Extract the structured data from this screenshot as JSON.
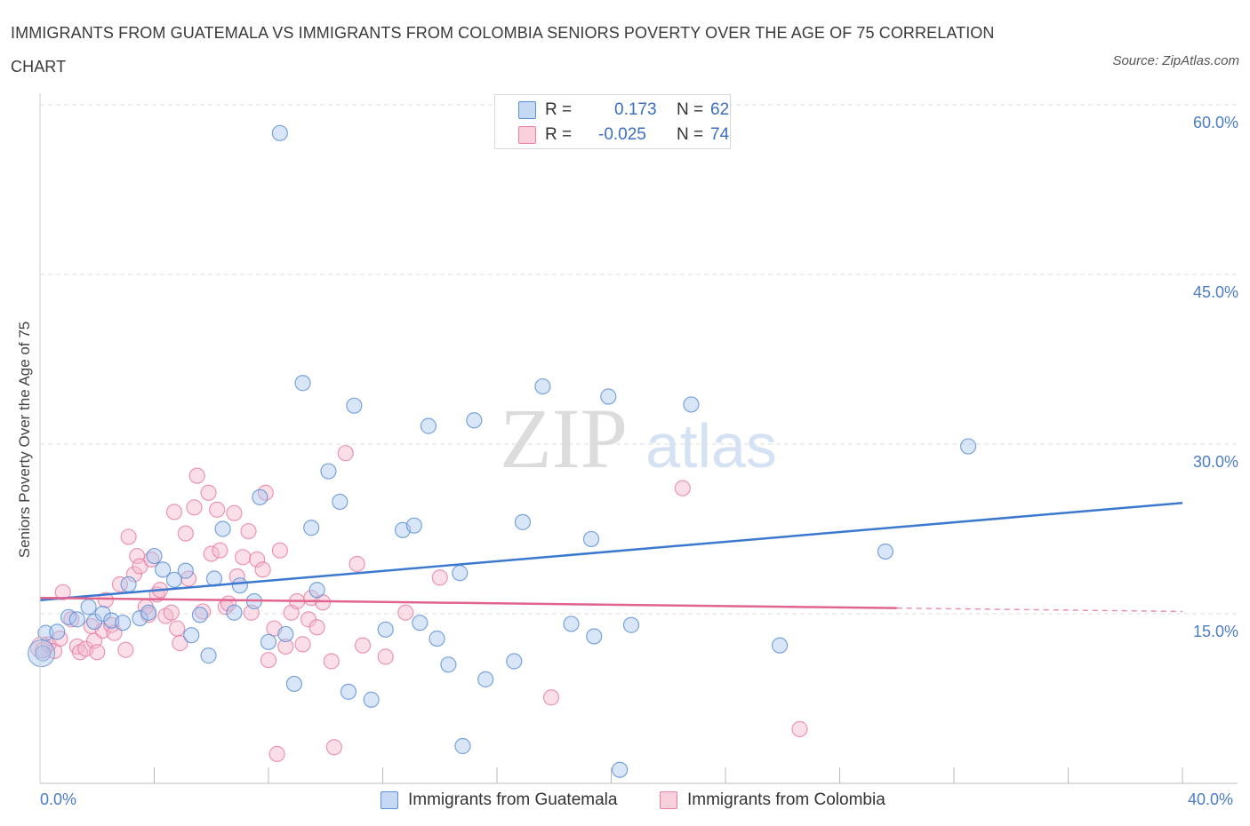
{
  "title": "IMMIGRANTS FROM GUATEMALA VS IMMIGRANTS FROM COLOMBIA SENIORS POVERTY OVER THE AGE OF 75 CORRELATION CHART",
  "source": "Source: ZipAtlas.com",
  "watermark": {
    "zip": "ZIP",
    "atlas": "atlas"
  },
  "legend": {
    "guatemala": {
      "r_label": "R =",
      "r_value": "0.173",
      "n_label": "N =",
      "n_value": "62"
    },
    "colombia": {
      "r_label": "R =",
      "r_value": "-0.025",
      "n_label": "N =",
      "n_value": "74"
    }
  },
  "bottom_legend": {
    "guatemala": "Immigrants from Guatemala",
    "colombia": "Immigrants from Colombia"
  },
  "colors": {
    "guatemala": "#5b8fd6",
    "guatemala_fill": "#aac8f0",
    "colombia": "#e87ea0",
    "colombia_fill": "#f5b8cb",
    "tick": "#4a7cc7"
  },
  "chart_data": {
    "type": "scatter",
    "title": "IMMIGRANTS FROM GUATEMALA VS IMMIGRANTS FROM COLOMBIA SENIORS POVERTY OVER THE AGE OF 75 CORRELATION CHART",
    "xlabel": "",
    "ylabel": "Seniors Poverty Over the Age of 75",
    "xlim": [
      0,
      40
    ],
    "ylim": [
      0,
      60
    ],
    "x_tick_labels": [
      "0.0%",
      "40.0%"
    ],
    "y_ticks": [
      15,
      30,
      45,
      60
    ],
    "y_tick_labels": [
      "15.0%",
      "30.0%",
      "45.0%",
      "60.0%"
    ],
    "grid": true,
    "legend_position": "top-center",
    "series": [
      {
        "name": "Immigrants from Guatemala",
        "r": 0.173,
        "n": 62,
        "trend": {
          "x": [
            0,
            40
          ],
          "y": [
            16.2,
            24.8
          ]
        },
        "points": [
          [
            0.1,
            11.5
          ],
          [
            0.2,
            13.3
          ],
          [
            0.6,
            13.4
          ],
          [
            1.0,
            14.7
          ],
          [
            1.3,
            14.5
          ],
          [
            1.7,
            15.6
          ],
          [
            1.9,
            14.3
          ],
          [
            2.2,
            15.0
          ],
          [
            2.5,
            14.4
          ],
          [
            2.9,
            14.2
          ],
          [
            3.1,
            17.6
          ],
          [
            3.5,
            14.6
          ],
          [
            3.8,
            15.1
          ],
          [
            4.0,
            20.1
          ],
          [
            4.3,
            18.9
          ],
          [
            4.7,
            18.0
          ],
          [
            5.1,
            18.8
          ],
          [
            5.3,
            13.1
          ],
          [
            5.6,
            14.9
          ],
          [
            5.9,
            11.3
          ],
          [
            6.1,
            18.1
          ],
          [
            6.4,
            22.5
          ],
          [
            6.8,
            15.1
          ],
          [
            7.0,
            17.5
          ],
          [
            7.5,
            16.1
          ],
          [
            7.7,
            25.3
          ],
          [
            8.0,
            12.5
          ],
          [
            8.4,
            57.5
          ],
          [
            8.6,
            13.2
          ],
          [
            8.9,
            8.8
          ],
          [
            9.2,
            35.4
          ],
          [
            9.5,
            22.6
          ],
          [
            9.7,
            17.1
          ],
          [
            10.1,
            27.6
          ],
          [
            10.5,
            24.9
          ],
          [
            10.8,
            8.1
          ],
          [
            11.0,
            33.4
          ],
          [
            11.6,
            7.4
          ],
          [
            12.1,
            13.6
          ],
          [
            12.7,
            22.4
          ],
          [
            13.1,
            22.8
          ],
          [
            13.3,
            14.2
          ],
          [
            13.6,
            31.6
          ],
          [
            13.9,
            12.8
          ],
          [
            14.3,
            10.5
          ],
          [
            14.8,
            3.3
          ],
          [
            14.7,
            18.6
          ],
          [
            15.2,
            32.1
          ],
          [
            15.6,
            9.2
          ],
          [
            16.6,
            10.8
          ],
          [
            16.9,
            23.1
          ],
          [
            17.6,
            35.1
          ],
          [
            18.6,
            14.1
          ],
          [
            19.3,
            21.6
          ],
          [
            19.4,
            13.0
          ],
          [
            19.9,
            34.2
          ],
          [
            20.3,
            1.2
          ],
          [
            20.7,
            14.0
          ],
          [
            22.8,
            33.5
          ],
          [
            25.9,
            12.2
          ],
          [
            29.6,
            20.5
          ],
          [
            32.5,
            29.8
          ]
        ]
      },
      {
        "name": "Immigrants from Colombia",
        "r": -0.025,
        "n": 74,
        "trend": {
          "x": [
            0,
            30,
            40
          ],
          "y": [
            16.4,
            15.5,
            15.2
          ]
        },
        "points": [
          [
            0.1,
            11.8
          ],
          [
            0.3,
            12.3
          ],
          [
            0.5,
            11.7
          ],
          [
            0.7,
            12.8
          ],
          [
            0.8,
            16.9
          ],
          [
            1.1,
            14.5
          ],
          [
            1.3,
            12.1
          ],
          [
            1.4,
            11.6
          ],
          [
            1.6,
            11.9
          ],
          [
            1.8,
            13.9
          ],
          [
            1.9,
            12.6
          ],
          [
            2.0,
            11.6
          ],
          [
            2.2,
            13.5
          ],
          [
            2.3,
            16.2
          ],
          [
            2.5,
            14.0
          ],
          [
            2.6,
            13.3
          ],
          [
            2.8,
            17.6
          ],
          [
            3.0,
            11.8
          ],
          [
            3.1,
            21.8
          ],
          [
            3.3,
            18.5
          ],
          [
            3.4,
            20.1
          ],
          [
            3.5,
            19.2
          ],
          [
            3.7,
            15.6
          ],
          [
            3.8,
            14.9
          ],
          [
            3.9,
            19.8
          ],
          [
            4.1,
            16.7
          ],
          [
            4.2,
            17.1
          ],
          [
            4.4,
            14.8
          ],
          [
            4.6,
            15.1
          ],
          [
            4.7,
            24.0
          ],
          [
            4.8,
            13.7
          ],
          [
            4.9,
            12.4
          ],
          [
            5.1,
            22.1
          ],
          [
            5.2,
            18.1
          ],
          [
            5.4,
            24.4
          ],
          [
            5.5,
            27.2
          ],
          [
            5.7,
            15.2
          ],
          [
            5.9,
            25.7
          ],
          [
            6.0,
            20.3
          ],
          [
            6.2,
            24.2
          ],
          [
            6.3,
            20.6
          ],
          [
            6.5,
            15.6
          ],
          [
            6.6,
            15.9
          ],
          [
            6.8,
            23.9
          ],
          [
            6.9,
            18.3
          ],
          [
            7.1,
            20.0
          ],
          [
            7.3,
            22.3
          ],
          [
            7.4,
            15.1
          ],
          [
            7.6,
            19.8
          ],
          [
            7.8,
            18.9
          ],
          [
            7.9,
            25.7
          ],
          [
            8.0,
            10.9
          ],
          [
            8.2,
            13.7
          ],
          [
            8.3,
            2.6
          ],
          [
            8.4,
            20.6
          ],
          [
            8.6,
            12.1
          ],
          [
            8.8,
            15.1
          ],
          [
            9.0,
            16.1
          ],
          [
            9.2,
            12.3
          ],
          [
            9.4,
            14.5
          ],
          [
            9.5,
            16.4
          ],
          [
            9.7,
            13.8
          ],
          [
            9.9,
            16.0
          ],
          [
            10.2,
            10.8
          ],
          [
            10.3,
            3.2
          ],
          [
            10.7,
            29.2
          ],
          [
            11.1,
            19.4
          ],
          [
            11.3,
            12.2
          ],
          [
            12.1,
            11.2
          ],
          [
            12.8,
            15.1
          ],
          [
            14.0,
            18.2
          ],
          [
            17.9,
            7.6
          ],
          [
            22.5,
            26.1
          ],
          [
            26.6,
            4.8
          ]
        ]
      }
    ]
  }
}
